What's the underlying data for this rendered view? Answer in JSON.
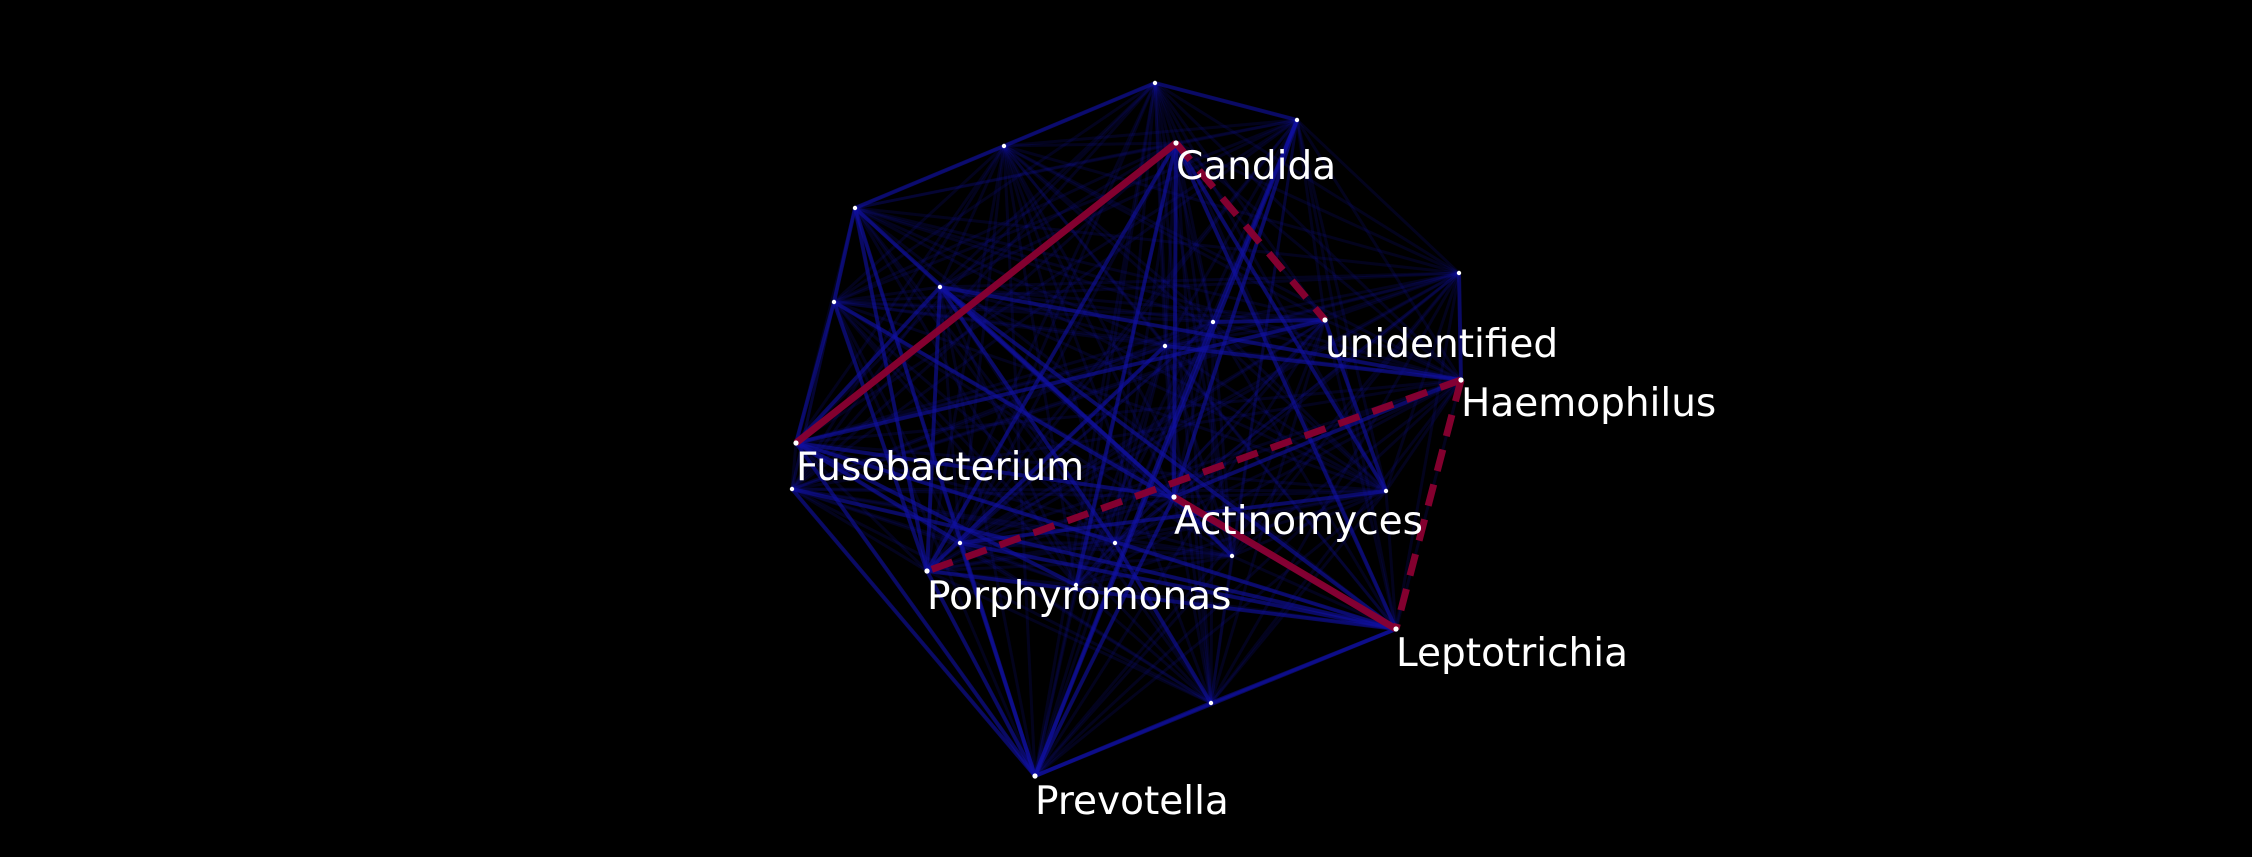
{
  "network": {
    "background_color": "#000000",
    "node_color": "#ffffff",
    "edge_color_default": "#1010a0",
    "edge_color_highlight": "#8a0030",
    "labeled_nodes": [
      {
        "id": "candida",
        "label": "Candida"
      },
      {
        "id": "unidentified",
        "label": "unidentified"
      },
      {
        "id": "haemophilus",
        "label": "Haemophilus"
      },
      {
        "id": "fusobacterium",
        "label": "Fusobacterium"
      },
      {
        "id": "actinomyces",
        "label": "Actinomyces"
      },
      {
        "id": "porphyromonas",
        "label": "Porphyromonas"
      },
      {
        "id": "leptotrichia",
        "label": "Leptotrichia"
      },
      {
        "id": "prevotella",
        "label": "Prevotella"
      }
    ],
    "highlighted_edges": [
      {
        "from": "candida",
        "to": "fusobacterium",
        "style": "solid"
      },
      {
        "from": "candida",
        "to": "unidentified",
        "style": "dashed"
      },
      {
        "from": "haemophilus",
        "to": "porphyromonas",
        "style": "dashed"
      },
      {
        "from": "haemophilus",
        "to": "leptotrichia",
        "style": "dashed"
      },
      {
        "from": "actinomyces",
        "to": "leptotrichia",
        "style": "solid"
      }
    ]
  }
}
